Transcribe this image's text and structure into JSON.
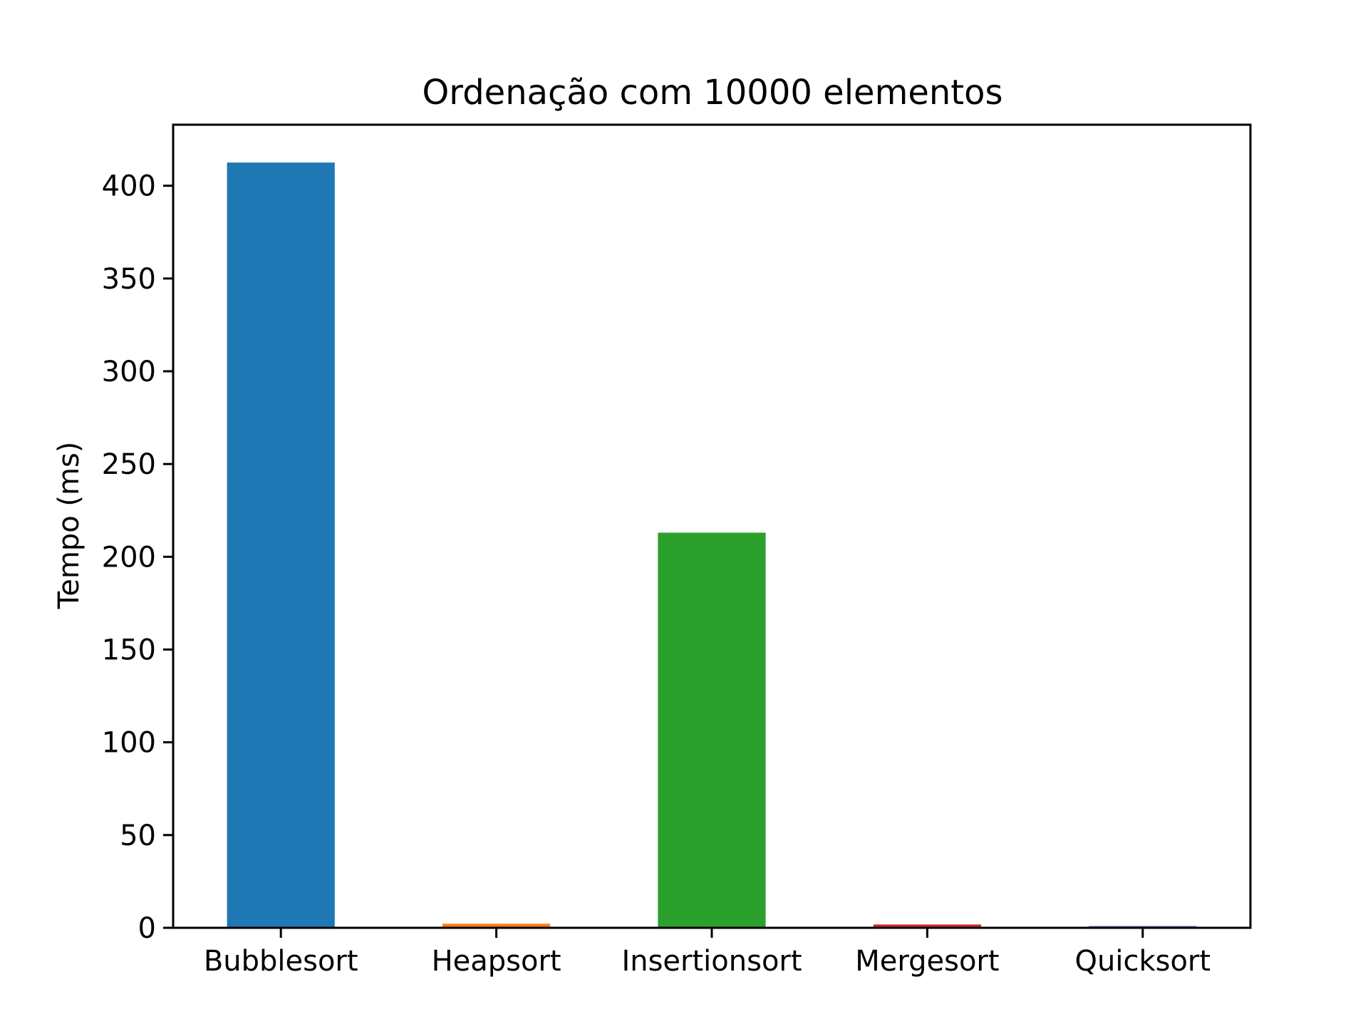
{
  "chart_data": {
    "type": "bar",
    "title": "Ordenação com 10000 elementos",
    "xlabel": "",
    "ylabel": "Tempo (ms)",
    "categories": [
      "Bubblesort",
      "Heapsort",
      "Insertionsort",
      "Mergesort",
      "Quicksort"
    ],
    "values": [
      412.5,
      2.2,
      213.0,
      1.8,
      1.0
    ],
    "colors": [
      "#1f77b4",
      "#ff7f0e",
      "#2ca02c",
      "#d62728",
      "#9467bd"
    ],
    "ylim": [
      0,
      432.9
    ],
    "yticks": [
      0,
      50,
      100,
      150,
      200,
      250,
      300,
      350,
      400
    ],
    "grid": false,
    "legend": "none"
  }
}
